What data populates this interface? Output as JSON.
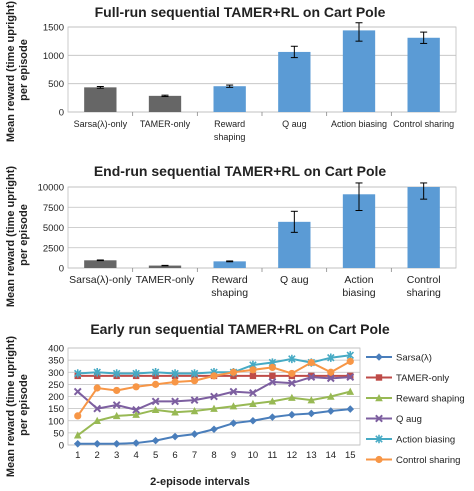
{
  "chart_data": [
    {
      "type": "bar",
      "title": "Full-run sequential TAMER+RL on Cart Pole",
      "ylabel": "Mean reward (time upright) per episode",
      "xlabel": "",
      "categories": [
        "Sarsa(λ)-only",
        "TAMER-only",
        "Reward shaping",
        "Q aug",
        "Action biasing",
        "Control sharing"
      ],
      "values": [
        435,
        285,
        455,
        1060,
        1440,
        1310
      ],
      "errors": [
        15,
        12,
        20,
        100,
        190,
        100
      ],
      "colors": [
        "#666666",
        "#666666",
        "#5b9bd5",
        "#5b9bd5",
        "#5b9bd5",
        "#5b9bd5"
      ],
      "ylim": [
        0,
        1500
      ],
      "yticks": [
        0,
        500,
        1000,
        1500
      ],
      "grid": true
    },
    {
      "type": "bar",
      "title": "End-run sequential TAMER+RL on Cart Pole",
      "ylabel": "Mean reward (time upright) per episode",
      "xlabel": "",
      "categories": [
        "Sarsa(λ)-only",
        "TAMER-only",
        "Reward shaping",
        "Q aug",
        "Action biasing",
        "Control sharing"
      ],
      "values": [
        950,
        300,
        820,
        5700,
        9100,
        10300
      ],
      "errors": [
        40,
        25,
        50,
        1300,
        2000,
        1800
      ],
      "colors": [
        "#666666",
        "#666666",
        "#5b9bd5",
        "#5b9bd5",
        "#5b9bd5",
        "#5b9bd5"
      ],
      "ylim": [
        0,
        10000
      ],
      "yticks": [
        0,
        2500,
        5000,
        7500,
        10000
      ],
      "grid": true
    },
    {
      "type": "line",
      "title": "Early run sequential TAMER+RL on Cart Pole",
      "ylabel": "Mean reward (time upright) per episode",
      "xlabel": "2-episode intervals",
      "x": [
        1,
        2,
        3,
        4,
        5,
        6,
        7,
        8,
        9,
        10,
        11,
        12,
        13,
        14,
        15
      ],
      "ylim": [
        0,
        400
      ],
      "yticks": [
        0,
        50,
        100,
        150,
        200,
        250,
        300,
        350,
        400
      ],
      "grid": true,
      "legend": "right",
      "series": [
        {
          "name": "Sarsa(λ)",
          "color": "#4a7ebb",
          "marker": "diamond",
          "values": [
            5,
            5,
            5,
            8,
            18,
            35,
            45,
            65,
            90,
            100,
            115,
            125,
            130,
            140,
            148
          ]
        },
        {
          "name": "TAMER-only",
          "color": "#be4b48",
          "marker": "square",
          "values": [
            285,
            285,
            285,
            285,
            285,
            285,
            285,
            285,
            285,
            285,
            285,
            285,
            285,
            285,
            285
          ]
        },
        {
          "name": "Reward shaping",
          "color": "#98b954",
          "marker": "triangle",
          "values": [
            40,
            100,
            120,
            125,
            145,
            135,
            140,
            150,
            160,
            170,
            180,
            195,
            185,
            200,
            220
          ]
        },
        {
          "name": "Q aug",
          "color": "#7d5fa0",
          "marker": "x",
          "values": [
            220,
            150,
            165,
            145,
            180,
            180,
            185,
            200,
            220,
            215,
            260,
            255,
            280,
            275,
            280
          ]
        },
        {
          "name": "Action biasing",
          "color": "#46aac4",
          "marker": "star",
          "values": [
            295,
            300,
            295,
            295,
            300,
            295,
            295,
            300,
            300,
            330,
            340,
            355,
            340,
            360,
            370
          ]
        },
        {
          "name": "Control sharing",
          "color": "#f79646",
          "marker": "circle",
          "values": [
            120,
            235,
            225,
            240,
            250,
            260,
            265,
            285,
            300,
            310,
            320,
            295,
            340,
            300,
            345
          ]
        }
      ]
    }
  ]
}
